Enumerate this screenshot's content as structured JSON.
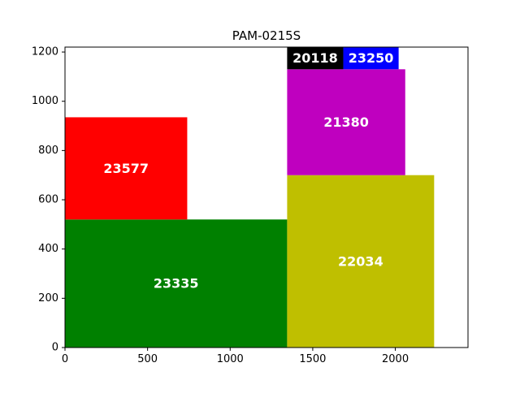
{
  "chart_data": {
    "type": "treemap-bins",
    "title": "PAM-0215S",
    "xlabel": "",
    "ylabel": "",
    "xlim": [
      0,
      2440
    ],
    "ylim": [
      0,
      1220
    ],
    "x_ticks": [
      0,
      500,
      1000,
      1500,
      2000
    ],
    "y_ticks": [
      0,
      200,
      400,
      600,
      800,
      1000,
      1200
    ],
    "grid": false,
    "rectangles": [
      {
        "label": "23335",
        "x": 0,
        "y": 0,
        "w": 1345,
        "h": 520,
        "color": "#008000"
      },
      {
        "label": "23577",
        "x": 0,
        "y": 520,
        "w": 740,
        "h": 415,
        "color": "#ff0000"
      },
      {
        "label": "22034",
        "x": 1345,
        "y": 0,
        "w": 890,
        "h": 700,
        "color": "#bfbf00"
      },
      {
        "label": "21380",
        "x": 1345,
        "y": 700,
        "w": 715,
        "h": 430,
        "color": "#bf00bf"
      },
      {
        "label": "20118",
        "x": 1345,
        "y": 1130,
        "w": 340,
        "h": 90,
        "color": "#000000"
      },
      {
        "label": "23250",
        "x": 1685,
        "y": 1130,
        "w": 335,
        "h": 90,
        "color": "#0000ff"
      }
    ]
  }
}
